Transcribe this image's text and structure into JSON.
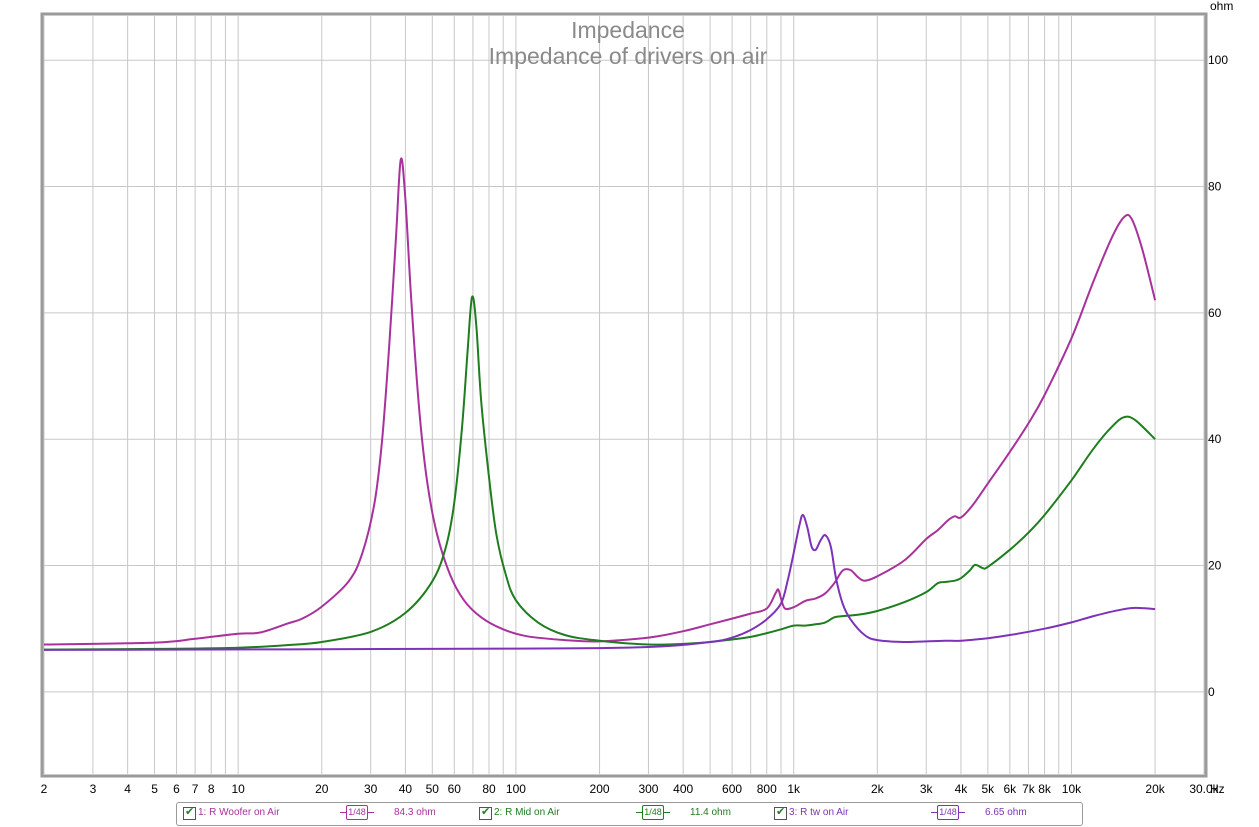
{
  "chart_data": {
    "type": "line",
    "title": "Impedance",
    "subtitle": "Impedance of drivers on air",
    "ylabel_unit": "ohm",
    "xlabel_unit": "Hz",
    "x_scale": "log",
    "xlim": [
      2,
      30000
    ],
    "ylim": [
      -13,
      107
    ],
    "grid": true,
    "x_ticks": [
      {
        "v": 2,
        "label": "2"
      },
      {
        "v": 3,
        "label": "3"
      },
      {
        "v": 4,
        "label": "4"
      },
      {
        "v": 5,
        "label": "5"
      },
      {
        "v": 6,
        "label": "6"
      },
      {
        "v": 7,
        "label": "7"
      },
      {
        "v": 8,
        "label": "8"
      },
      {
        "v": 10,
        "label": "10"
      },
      {
        "v": 20,
        "label": "20"
      },
      {
        "v": 30,
        "label": "30"
      },
      {
        "v": 40,
        "label": "40"
      },
      {
        "v": 50,
        "label": "50"
      },
      {
        "v": 60,
        "label": "60"
      },
      {
        "v": 80,
        "label": "80"
      },
      {
        "v": 100,
        "label": "100"
      },
      {
        "v": 200,
        "label": "200"
      },
      {
        "v": 300,
        "label": "300"
      },
      {
        "v": 400,
        "label": "400"
      },
      {
        "v": 600,
        "label": "600"
      },
      {
        "v": 800,
        "label": "800"
      },
      {
        "v": 1000,
        "label": "1k"
      },
      {
        "v": 2000,
        "label": "2k"
      },
      {
        "v": 3000,
        "label": "3k"
      },
      {
        "v": 4000,
        "label": "4k"
      },
      {
        "v": 5000,
        "label": "5k"
      },
      {
        "v": 6000,
        "label": "6k"
      },
      {
        "v": 7000,
        "label": "7k"
      },
      {
        "v": 8000,
        "label": "8k"
      },
      {
        "v": 10000,
        "label": "10k"
      },
      {
        "v": 20000,
        "label": "20k"
      },
      {
        "v": 30000,
        "label": "30.0k"
      }
    ],
    "y_ticks": [
      {
        "v": 0,
        "label": "0"
      },
      {
        "v": 20,
        "label": "20"
      },
      {
        "v": 40,
        "label": "40"
      },
      {
        "v": 60,
        "label": "60"
      },
      {
        "v": 80,
        "label": "80"
      },
      {
        "v": 100,
        "label": "100"
      }
    ],
    "series": [
      {
        "name": "1: R Woofer on Air",
        "color": "#a8319c",
        "legend_value": "84.3 ohm",
        "smoothing": "1/48",
        "points": [
          [
            2,
            7.5
          ],
          [
            5,
            7.8
          ],
          [
            7,
            8.4
          ],
          [
            10,
            9.2
          ],
          [
            12,
            9.4
          ],
          [
            15,
            10.8
          ],
          [
            17,
            11.6
          ],
          [
            20,
            13.5
          ],
          [
            25,
            17.5
          ],
          [
            28,
            22
          ],
          [
            31,
            30
          ],
          [
            33,
            40
          ],
          [
            35,
            55
          ],
          [
            37,
            72
          ],
          [
            38.5,
            84.3
          ],
          [
            40,
            78
          ],
          [
            42,
            62
          ],
          [
            45,
            44
          ],
          [
            48,
            33
          ],
          [
            52,
            25
          ],
          [
            58,
            18.5
          ],
          [
            65,
            14.5
          ],
          [
            75,
            11.8
          ],
          [
            90,
            9.9
          ],
          [
            110,
            8.8
          ],
          [
            150,
            8.2
          ],
          [
            200,
            8
          ],
          [
            300,
            8.6
          ],
          [
            400,
            9.6
          ],
          [
            500,
            10.7
          ],
          [
            600,
            11.6
          ],
          [
            700,
            12.4
          ],
          [
            800,
            13.2
          ],
          [
            860,
            15.6
          ],
          [
            880,
            16.2
          ],
          [
            900,
            14.8
          ],
          [
            930,
            13.2
          ],
          [
            1000,
            13.4
          ],
          [
            1100,
            14.4
          ],
          [
            1200,
            14.8
          ],
          [
            1300,
            15.6
          ],
          [
            1400,
            17.2
          ],
          [
            1500,
            19.2
          ],
          [
            1600,
            19.3
          ],
          [
            1700,
            18.2
          ],
          [
            1800,
            17.6
          ],
          [
            2000,
            18.3
          ],
          [
            2500,
            20.8
          ],
          [
            3000,
            24.2
          ],
          [
            3300,
            25.6
          ],
          [
            3600,
            27.2
          ],
          [
            3800,
            27.8
          ],
          [
            4000,
            27.6
          ],
          [
            4400,
            29.5
          ],
          [
            5000,
            33
          ],
          [
            6000,
            38
          ],
          [
            7000,
            42.5
          ],
          [
            8000,
            47
          ],
          [
            10000,
            56
          ],
          [
            12000,
            65
          ],
          [
            14000,
            72
          ],
          [
            15500,
            75.2
          ],
          [
            16500,
            74.8
          ],
          [
            18000,
            70
          ],
          [
            20000,
            62
          ]
        ]
      },
      {
        "name": "2: R Mid on Air",
        "color": "#1e7d1e",
        "legend_value": "11.4 ohm",
        "smoothing": "1/48",
        "points": [
          [
            2,
            6.7
          ],
          [
            5,
            6.8
          ],
          [
            10,
            7
          ],
          [
            15,
            7.4
          ],
          [
            20,
            7.9
          ],
          [
            30,
            9.5
          ],
          [
            40,
            12.5
          ],
          [
            50,
            17.5
          ],
          [
            56,
            23
          ],
          [
            60,
            30
          ],
          [
            64,
            42
          ],
          [
            67,
            54
          ],
          [
            69.5,
            62.5
          ],
          [
            72,
            58
          ],
          [
            75,
            46
          ],
          [
            80,
            34
          ],
          [
            85,
            25
          ],
          [
            92,
            18.5
          ],
          [
            100,
            14.5
          ],
          [
            120,
            11
          ],
          [
            150,
            9
          ],
          [
            200,
            8.1
          ],
          [
            300,
            7.5
          ],
          [
            400,
            7.6
          ],
          [
            500,
            7.9
          ],
          [
            600,
            8.3
          ],
          [
            700,
            8.7
          ],
          [
            800,
            9.3
          ],
          [
            900,
            9.9
          ],
          [
            1000,
            10.5
          ],
          [
            1100,
            10.5
          ],
          [
            1200,
            10.7
          ],
          [
            1300,
            11
          ],
          [
            1400,
            11.8
          ],
          [
            1500,
            12
          ],
          [
            1700,
            12.2
          ],
          [
            2000,
            12.8
          ],
          [
            2500,
            14.2
          ],
          [
            3000,
            15.8
          ],
          [
            3300,
            17.2
          ],
          [
            3500,
            17.4
          ],
          [
            3800,
            17.6
          ],
          [
            4000,
            18
          ],
          [
            4300,
            19.2
          ],
          [
            4500,
            20.1
          ],
          [
            4800,
            19.6
          ],
          [
            5000,
            19.8
          ],
          [
            6000,
            22.5
          ],
          [
            7000,
            25.2
          ],
          [
            8000,
            28
          ],
          [
            10000,
            33.5
          ],
          [
            12000,
            38.5
          ],
          [
            14000,
            42
          ],
          [
            15500,
            43.5
          ],
          [
            17000,
            43
          ],
          [
            20000,
            40
          ]
        ]
      },
      {
        "name": "3: R tw on Air",
        "color": "#7d32b8",
        "legend_value": "6.65 ohm",
        "smoothing": "1/48",
        "points": [
          [
            2,
            6.65
          ],
          [
            100,
            6.85
          ],
          [
            300,
            7.1
          ],
          [
            500,
            7.9
          ],
          [
            600,
            8.6
          ],
          [
            700,
            9.8
          ],
          [
            800,
            11.5
          ],
          [
            900,
            14
          ],
          [
            950,
            17.5
          ],
          [
            1000,
            22
          ],
          [
            1050,
            26.5
          ],
          [
            1080,
            28
          ],
          [
            1120,
            26
          ],
          [
            1160,
            23
          ],
          [
            1200,
            22.5
          ],
          [
            1250,
            24
          ],
          [
            1300,
            24.8
          ],
          [
            1360,
            23
          ],
          [
            1420,
            18
          ],
          [
            1500,
            14
          ],
          [
            1600,
            11.5
          ],
          [
            1800,
            9
          ],
          [
            2000,
            8.2
          ],
          [
            2500,
            7.9
          ],
          [
            3000,
            8
          ],
          [
            3500,
            8.1
          ],
          [
            4000,
            8.1
          ],
          [
            5000,
            8.5
          ],
          [
            6000,
            9
          ],
          [
            8000,
            10
          ],
          [
            10000,
            11
          ],
          [
            12000,
            12
          ],
          [
            15000,
            13
          ],
          [
            17000,
            13.3
          ],
          [
            20000,
            13.1
          ]
        ]
      }
    ]
  },
  "legend": [
    {
      "label": "1: R Woofer on Air",
      "smoothing": "1/48",
      "value": "84.3 ohm",
      "color": "#a8319c"
    },
    {
      "label": "2: R Mid on Air",
      "smoothing": "1/48",
      "value": "11.4 ohm",
      "color": "#1e7d1e"
    },
    {
      "label": "3: R tw on Air",
      "smoothing": "1/48",
      "value": "6.65 ohm",
      "color": "#7d32b8"
    }
  ]
}
